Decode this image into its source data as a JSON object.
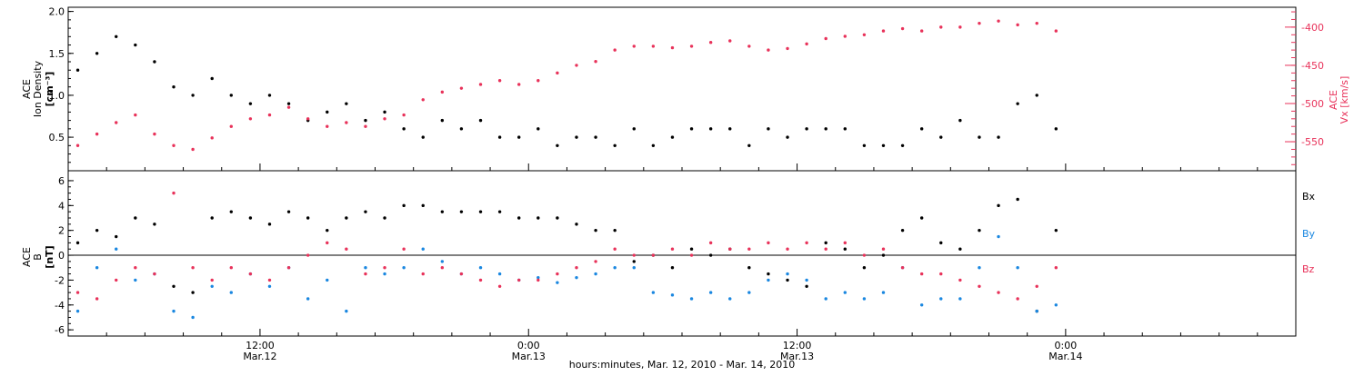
{
  "colors": {
    "black": "#000000",
    "red": "#e8325a",
    "blue": "#1a87e0"
  },
  "footer": {
    "xlabel": "hours:minutes, Mar. 12, 2010 - Mar. 14, 2010"
  },
  "chart_data": [
    {
      "type": "scatter",
      "panel": "top",
      "ylabel_left": [
        "ACE",
        "Ion Density",
        "[cm⁻³]"
      ],
      "ylabel_right": [
        "ACE",
        "Vx [km/s]"
      ],
      "ylim_left": [
        0.1,
        2.05
      ],
      "ylim_right": [
        -588,
        -374
      ],
      "xlim_hours": [
        0,
        64
      ],
      "yticks_left": [
        0.5,
        1.0,
        1.5,
        2.0
      ],
      "yticks_left_labels": [
        "0.5",
        "1.0",
        "1.5",
        "2.0"
      ],
      "yticks_right": [
        -550,
        -500,
        -450,
        -400
      ],
      "yticks_right_labels": [
        "-550",
        "-500",
        "-450",
        "-400"
      ],
      "series": [
        {
          "name": "Ion Density",
          "color": "#000000",
          "axis": "left",
          "x": [
            0.5,
            1.5,
            2.5,
            3.5,
            4.5,
            5.5,
            6.5,
            7.5,
            8.5,
            9.5,
            10.5,
            11.5,
            12.5,
            13.5,
            14.5,
            15.5,
            16.5,
            17.5,
            18.5,
            19.5,
            20.5,
            21.5,
            22.5,
            23.5,
            24.5,
            25.5,
            26.5,
            27.5,
            28.5,
            29.5,
            30.5,
            31.5,
            32.5,
            33.5,
            34.5,
            35.5,
            36.5,
            37.5,
            38.5,
            39.5,
            40.5,
            41.5,
            42.5,
            43.5,
            44.5,
            45.5,
            46.5,
            47.5,
            48.5,
            49.5,
            50.5,
            51.5
          ],
          "y": [
            1.3,
            1.5,
            1.7,
            1.6,
            1.4,
            1.1,
            1.0,
            1.2,
            1.0,
            0.9,
            1.0,
            0.9,
            0.7,
            0.8,
            0.9,
            0.7,
            0.8,
            0.6,
            0.5,
            0.7,
            0.6,
            0.7,
            0.5,
            0.5,
            0.6,
            0.4,
            0.5,
            0.5,
            0.4,
            0.6,
            0.4,
            0.5,
            0.6,
            0.6,
            0.6,
            0.4,
            0.6,
            0.5,
            0.6,
            0.6,
            0.6,
            0.4,
            0.4,
            0.4,
            0.6,
            0.5,
            0.7,
            0.5,
            0.5,
            0.9,
            1.0,
            0.6
          ]
        },
        {
          "name": "Vx",
          "color": "#e8325a",
          "axis": "right",
          "x": [
            0.5,
            1.5,
            2.5,
            3.5,
            4.5,
            5.5,
            6.5,
            7.5,
            8.5,
            9.5,
            10.5,
            11.5,
            12.5,
            13.5,
            14.5,
            15.5,
            16.5,
            17.5,
            18.5,
            19.5,
            20.5,
            21.5,
            22.5,
            23.5,
            24.5,
            25.5,
            26.5,
            27.5,
            28.5,
            29.5,
            30.5,
            31.5,
            32.5,
            33.5,
            34.5,
            35.5,
            36.5,
            37.5,
            38.5,
            39.5,
            40.5,
            41.5,
            42.5,
            43.5,
            44.5,
            45.5,
            46.5,
            47.5,
            48.5,
            49.5,
            50.5,
            51.5
          ],
          "y": [
            -555,
            -540,
            -525,
            -515,
            -540,
            -555,
            -560,
            -545,
            -530,
            -520,
            -515,
            -505,
            -520,
            -530,
            -525,
            -530,
            -520,
            -515,
            -495,
            -485,
            -480,
            -475,
            -470,
            -475,
            -470,
            -460,
            -450,
            -445,
            -430,
            -425,
            -425,
            -427,
            -425,
            -420,
            -418,
            -425,
            -430,
            -428,
            -422,
            -415,
            -412,
            -410,
            -405,
            -402,
            -405,
            -400,
            -400,
            -395,
            -392,
            -397,
            -395,
            -405
          ]
        }
      ]
    },
    {
      "type": "scatter",
      "panel": "bottom",
      "ylabel_left": [
        "ACE",
        "B",
        "[nT]"
      ],
      "ylim": [
        -6.5,
        6.8
      ],
      "xlim_hours": [
        0,
        64
      ],
      "yticks": [
        -6,
        -4,
        -2,
        0,
        2,
        4,
        6
      ],
      "yticks_labels": [
        "-6",
        "-4",
        "-2",
        "0",
        "2",
        "4",
        "6"
      ],
      "zero_line": true,
      "legend": [
        "Bx",
        "By",
        "Bz"
      ],
      "series": [
        {
          "name": "Bx",
          "color": "#000000",
          "x": [
            0.5,
            1.5,
            2.5,
            3.5,
            4.5,
            5.5,
            6.5,
            7.5,
            8.5,
            9.5,
            10.5,
            11.5,
            12.5,
            13.5,
            14.5,
            15.5,
            16.5,
            17.5,
            18.5,
            19.5,
            20.5,
            21.5,
            22.5,
            23.5,
            24.5,
            25.5,
            26.5,
            27.5,
            28.5,
            29.5,
            30.5,
            31.5,
            32.5,
            33.5,
            34.5,
            35.5,
            36.5,
            37.5,
            38.5,
            39.5,
            40.5,
            41.5,
            42.5,
            43.5,
            44.5,
            45.5,
            46.5,
            47.5,
            48.5,
            49.5,
            50.5,
            51.5
          ],
          "y": [
            1.0,
            2.0,
            1.5,
            3.0,
            2.5,
            -2.5,
            -3.0,
            3.0,
            3.5,
            3.0,
            2.5,
            3.5,
            3.0,
            2.0,
            3.0,
            3.5,
            3.0,
            4.0,
            4.0,
            3.5,
            3.5,
            3.5,
            3.5,
            3.0,
            3.0,
            3.0,
            2.5,
            2.0,
            2.0,
            -0.5,
            0.0,
            -1.0,
            0.5,
            0.0,
            0.5,
            -1.0,
            -1.5,
            -2.0,
            -2.5,
            1.0,
            0.5,
            -1.0,
            0.0,
            2.0,
            3.0,
            1.0,
            0.5,
            2.0,
            4.0,
            4.5,
            -4.5,
            2.0
          ]
        },
        {
          "name": "By",
          "color": "#1a87e0",
          "x": [
            0.5,
            1.5,
            2.5,
            3.5,
            4.5,
            5.5,
            6.5,
            7.5,
            8.5,
            9.5,
            10.5,
            11.5,
            12.5,
            13.5,
            14.5,
            15.5,
            16.5,
            17.5,
            18.5,
            19.5,
            20.5,
            21.5,
            22.5,
            23.5,
            24.5,
            25.5,
            26.5,
            27.5,
            28.5,
            29.5,
            30.5,
            31.5,
            32.5,
            33.5,
            34.5,
            35.5,
            36.5,
            37.5,
            38.5,
            39.5,
            40.5,
            41.5,
            42.5,
            43.5,
            44.5,
            45.5,
            46.5,
            47.5,
            48.5,
            49.5,
            50.5,
            51.5
          ],
          "y": [
            -4.5,
            -1.0,
            0.5,
            -2.0,
            -1.5,
            -4.5,
            -5.0,
            -2.5,
            -3.0,
            -1.5,
            -2.5,
            -1.0,
            -3.5,
            -2.0,
            -4.5,
            -1.0,
            -1.5,
            -1.0,
            0.5,
            -0.5,
            -1.5,
            -1.0,
            -1.5,
            -2.0,
            -1.8,
            -2.2,
            -1.8,
            -1.5,
            -1.0,
            -1.0,
            -3.0,
            -3.2,
            -3.5,
            -3.0,
            -3.5,
            -3.0,
            -2.0,
            -1.5,
            -2.0,
            -3.5,
            -3.0,
            -3.5,
            -3.0,
            -1.0,
            -4.0,
            -3.5,
            -3.5,
            -1.0,
            1.5,
            -1.0,
            -4.5,
            -4.0
          ]
        },
        {
          "name": "Bz",
          "color": "#e8325a",
          "x": [
            0.5,
            1.5,
            2.5,
            3.5,
            4.5,
            5.5,
            6.5,
            7.5,
            8.5,
            9.5,
            10.5,
            11.5,
            12.5,
            13.5,
            14.5,
            15.5,
            16.5,
            17.5,
            18.5,
            19.5,
            20.5,
            21.5,
            22.5,
            23.5,
            24.5,
            25.5,
            26.5,
            27.5,
            28.5,
            29.5,
            30.5,
            31.5,
            32.5,
            33.5,
            34.5,
            35.5,
            36.5,
            37.5,
            38.5,
            39.5,
            40.5,
            41.5,
            42.5,
            43.5,
            44.5,
            45.5,
            46.5,
            47.5,
            48.5,
            49.5,
            50.5,
            51.5
          ],
          "y": [
            -3.0,
            -3.5,
            -2.0,
            -1.0,
            -1.5,
            5.0,
            -1.0,
            -2.0,
            -1.0,
            -1.5,
            -2.0,
            -1.0,
            0.0,
            1.0,
            0.5,
            -1.5,
            -1.0,
            0.5,
            -1.5,
            -1.0,
            -1.5,
            -2.0,
            -2.5,
            -2.0,
            -2.0,
            -1.5,
            -1.0,
            -0.5,
            0.5,
            0.0,
            0.0,
            0.5,
            0.0,
            1.0,
            0.5,
            0.5,
            1.0,
            0.5,
            1.0,
            0.5,
            1.0,
            0.0,
            0.5,
            -1.0,
            -1.5,
            -1.5,
            -2.0,
            -2.5,
            -3.0,
            -3.5,
            -2.5,
            -1.0
          ]
        }
      ]
    }
  ],
  "x_axis": {
    "ticks": [
      {
        "h": 10,
        "line1": "12:00",
        "line2": "Mar.12"
      },
      {
        "h": 24,
        "line1": "0:00",
        "line2": "Mar.13"
      },
      {
        "h": 38,
        "line1": "12:00",
        "line2": "Mar.13"
      },
      {
        "h": 52,
        "line1": "0:00",
        "line2": "Mar.14"
      }
    ]
  }
}
